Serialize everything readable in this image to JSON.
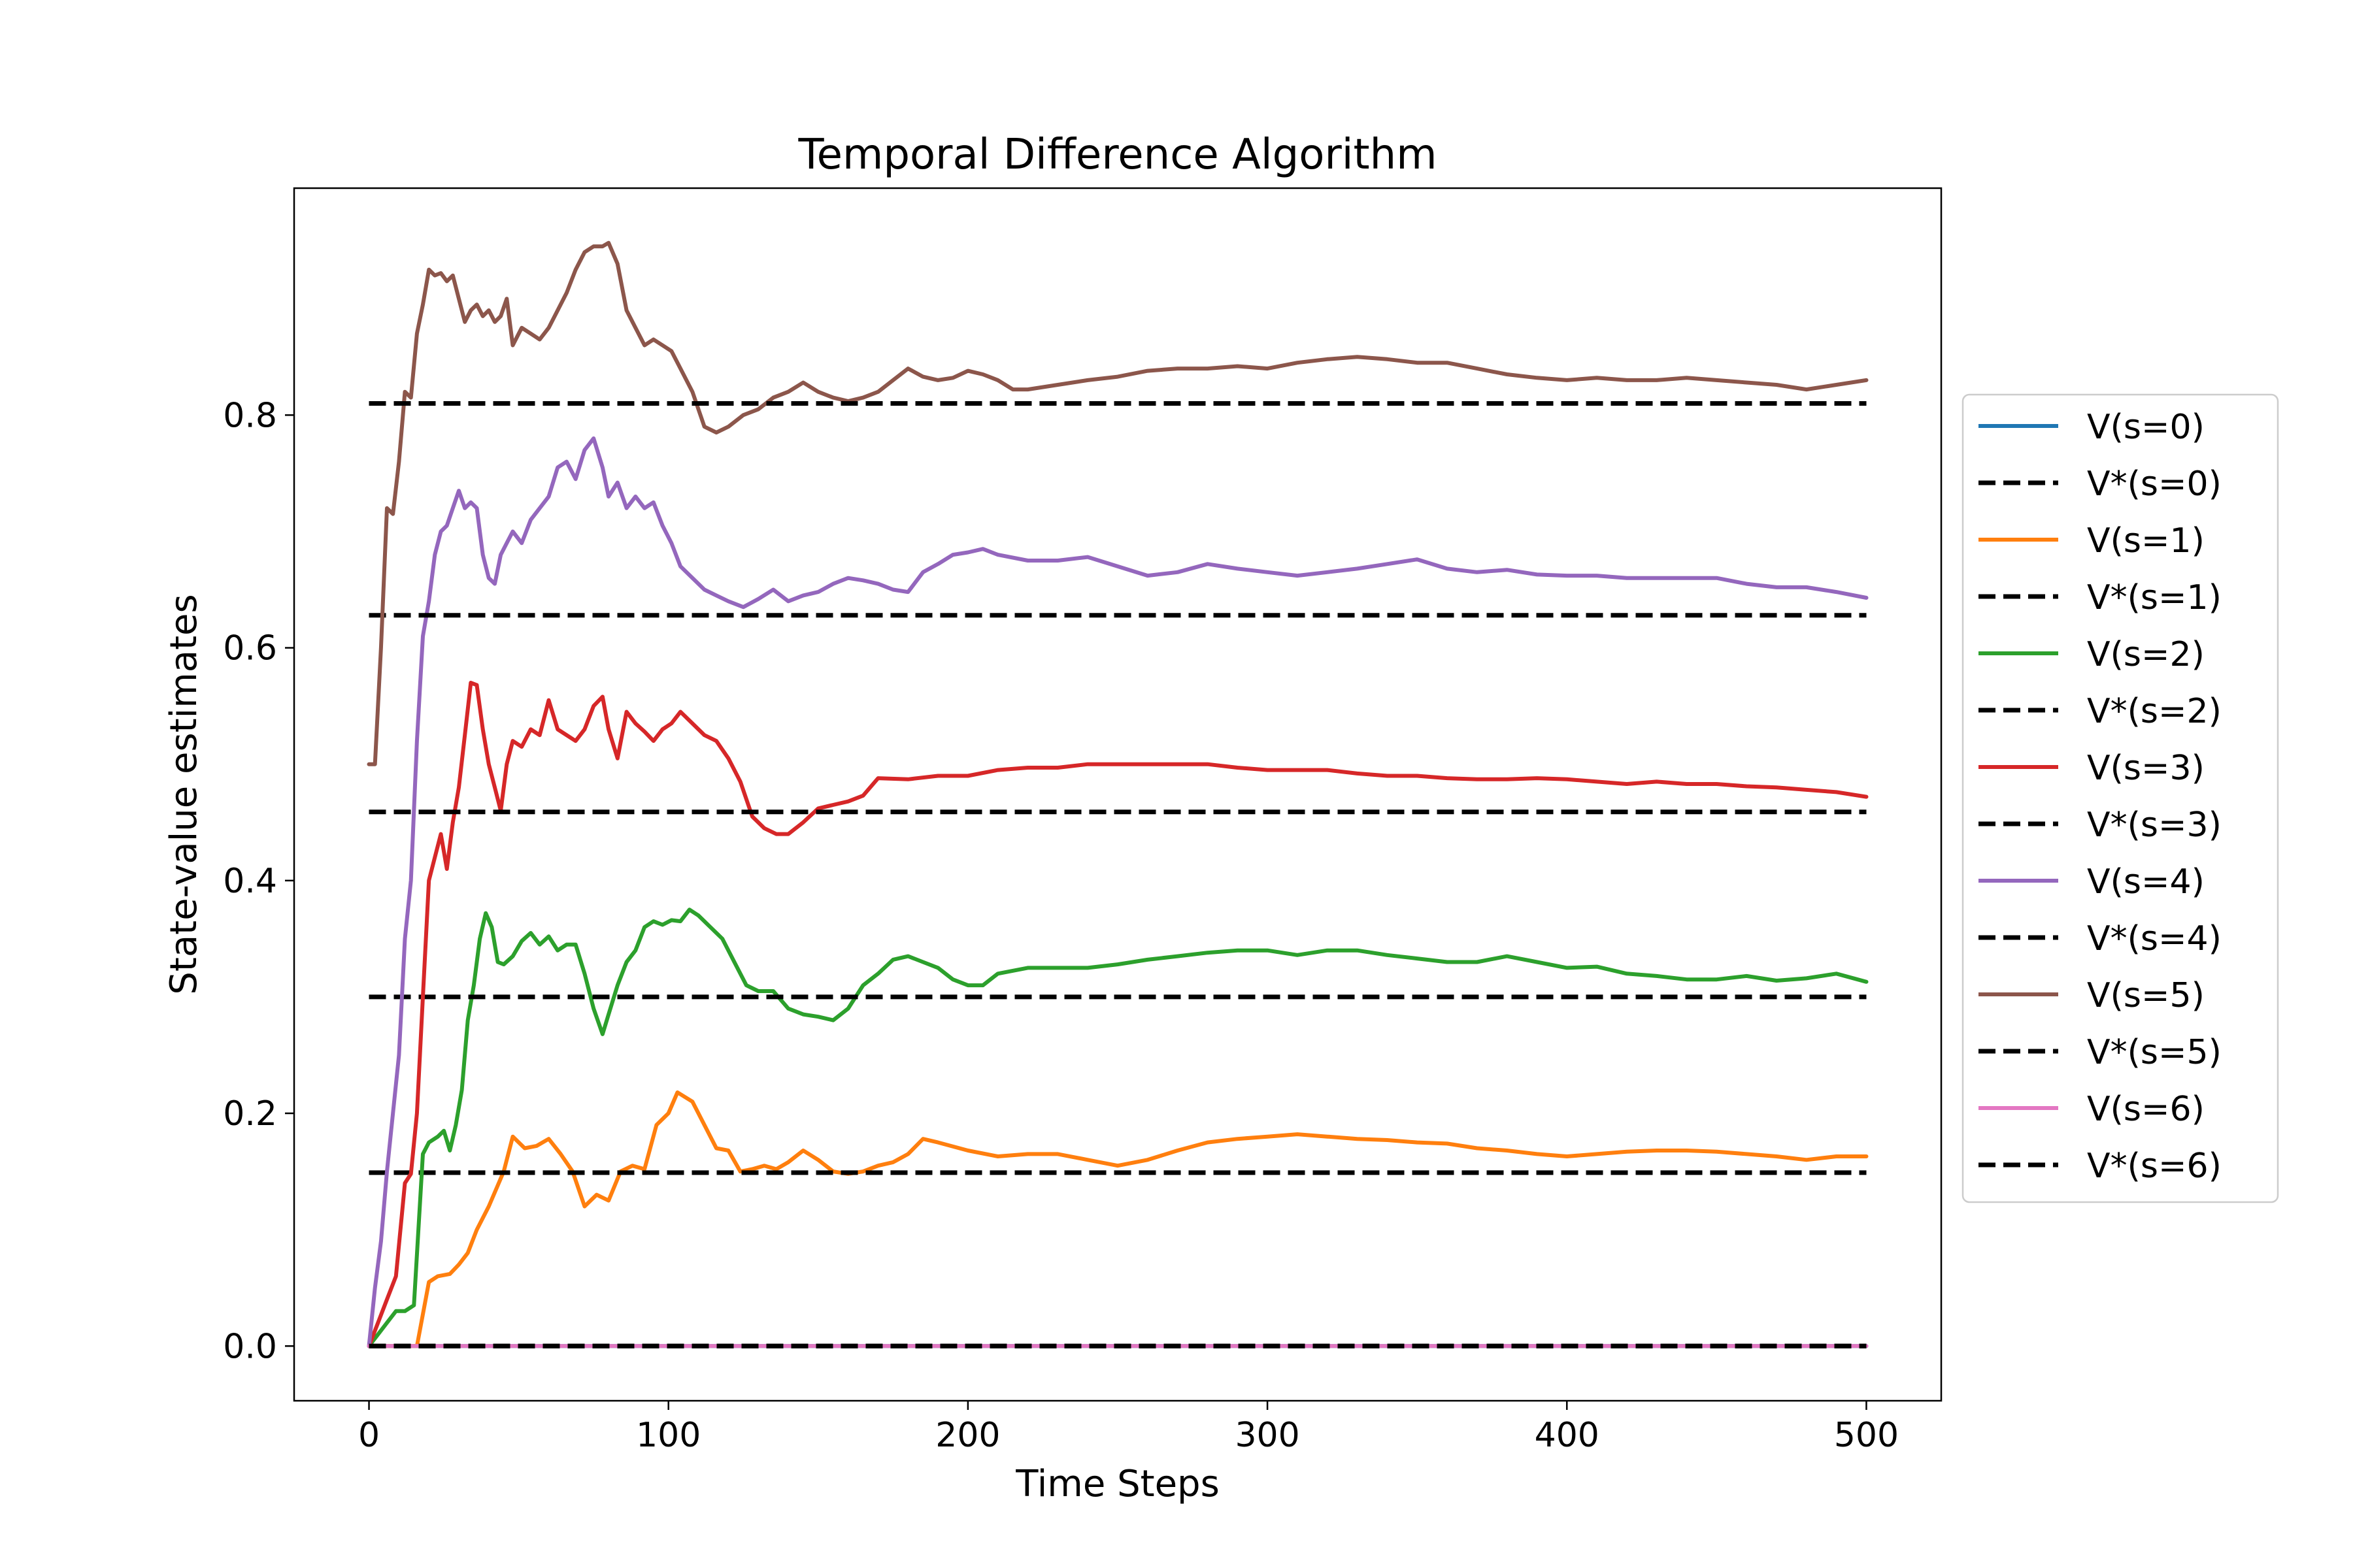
{
  "chart_data": {
    "type": "line",
    "title": "Temporal Difference Algorithm",
    "xlabel": "Time Steps",
    "ylabel": "State-value estimates",
    "xlim": [
      -25,
      525
    ],
    "ylim": [
      -0.047,
      0.995
    ],
    "xticks": [
      0,
      100,
      200,
      300,
      400,
      500
    ],
    "xtick_labels": [
      "0",
      "100",
      "200",
      "300",
      "400",
      "500"
    ],
    "yticks": [
      0.0,
      0.2,
      0.4,
      0.6,
      0.8
    ],
    "ytick_labels": [
      "0.0",
      "0.2",
      "0.4",
      "0.6",
      "0.8"
    ],
    "grid": false,
    "legend_position": "outside-right",
    "series": [
      {
        "name": "V(s=0)",
        "color": "#1f77b4",
        "style": "solid",
        "x": [
          0,
          500
        ],
        "y": [
          0.0,
          0.0
        ]
      },
      {
        "name": "V*(s=0)",
        "color": "#000000",
        "style": "dashed",
        "x": [
          0,
          500
        ],
        "y": [
          0.0,
          0.0
        ]
      },
      {
        "name": "V(s=1)",
        "color": "#ff7f0e",
        "style": "solid",
        "x": [
          0,
          16,
          20,
          23,
          27,
          30,
          33,
          36,
          40,
          45,
          48,
          52,
          56,
          60,
          64,
          68,
          72,
          76,
          80,
          84,
          88,
          92,
          96,
          100,
          103,
          108,
          112,
          116,
          120,
          124,
          128,
          132,
          136,
          140,
          145,
          150,
          155,
          160,
          165,
          170,
          175,
          180,
          185,
          190,
          200,
          210,
          220,
          230,
          240,
          250,
          260,
          270,
          280,
          290,
          300,
          310,
          320,
          330,
          340,
          350,
          360,
          370,
          380,
          390,
          400,
          410,
          420,
          430,
          440,
          450,
          460,
          470,
          480,
          490,
          500
        ],
        "y": [
          0.0,
          0.0,
          0.055,
          0.06,
          0.062,
          0.07,
          0.08,
          0.1,
          0.12,
          0.15,
          0.18,
          0.17,
          0.172,
          0.178,
          0.165,
          0.15,
          0.12,
          0.13,
          0.125,
          0.15,
          0.155,
          0.152,
          0.19,
          0.2,
          0.218,
          0.21,
          0.19,
          0.17,
          0.168,
          0.15,
          0.152,
          0.155,
          0.152,
          0.158,
          0.168,
          0.16,
          0.15,
          0.148,
          0.15,
          0.155,
          0.158,
          0.165,
          0.178,
          0.175,
          0.168,
          0.163,
          0.165,
          0.165,
          0.16,
          0.155,
          0.16,
          0.168,
          0.175,
          0.178,
          0.18,
          0.182,
          0.18,
          0.178,
          0.177,
          0.175,
          0.174,
          0.17,
          0.168,
          0.165,
          0.163,
          0.165,
          0.167,
          0.168,
          0.168,
          0.167,
          0.165,
          0.163,
          0.16,
          0.163,
          0.163
        ]
      },
      {
        "name": "V*(s=1)",
        "color": "#000000",
        "style": "dashed",
        "x": [
          0,
          500
        ],
        "y": [
          0.149,
          0.149
        ]
      },
      {
        "name": "V(s=2)",
        "color": "#2ca02c",
        "style": "solid",
        "x": [
          0,
          3,
          6,
          9,
          12,
          15,
          18,
          20,
          23,
          25,
          27,
          29,
          31,
          33,
          35,
          37,
          39,
          41,
          43,
          45,
          48,
          51,
          54,
          57,
          60,
          63,
          66,
          69,
          72,
          75,
          78,
          80,
          83,
          86,
          89,
          92,
          95,
          98,
          101,
          104,
          107,
          110,
          114,
          118,
          122,
          126,
          130,
          135,
          140,
          145,
          150,
          155,
          160,
          165,
          170,
          175,
          180,
          185,
          190,
          195,
          200,
          205,
          210,
          220,
          230,
          240,
          250,
          260,
          270,
          280,
          290,
          300,
          310,
          320,
          330,
          340,
          350,
          360,
          370,
          380,
          390,
          400,
          410,
          420,
          430,
          440,
          450,
          460,
          470,
          480,
          490,
          500
        ],
        "y": [
          0.0,
          0.01,
          0.02,
          0.03,
          0.03,
          0.035,
          0.165,
          0.175,
          0.18,
          0.185,
          0.168,
          0.19,
          0.22,
          0.28,
          0.31,
          0.35,
          0.372,
          0.36,
          0.33,
          0.328,
          0.335,
          0.348,
          0.355,
          0.345,
          0.352,
          0.34,
          0.345,
          0.345,
          0.32,
          0.29,
          0.268,
          0.285,
          0.31,
          0.33,
          0.34,
          0.36,
          0.365,
          0.362,
          0.366,
          0.365,
          0.375,
          0.37,
          0.36,
          0.35,
          0.33,
          0.31,
          0.305,
          0.305,
          0.29,
          0.285,
          0.283,
          0.28,
          0.29,
          0.31,
          0.32,
          0.332,
          0.335,
          0.33,
          0.325,
          0.315,
          0.31,
          0.31,
          0.32,
          0.325,
          0.325,
          0.325,
          0.328,
          0.332,
          0.335,
          0.338,
          0.34,
          0.34,
          0.336,
          0.34,
          0.34,
          0.336,
          0.333,
          0.33,
          0.33,
          0.335,
          0.33,
          0.325,
          0.326,
          0.32,
          0.318,
          0.315,
          0.315,
          0.318,
          0.314,
          0.316,
          0.32,
          0.313
        ]
      },
      {
        "name": "V*(s=2)",
        "color": "#000000",
        "style": "dashed",
        "x": [
          0,
          500
        ],
        "y": [
          0.3,
          0.3
        ]
      },
      {
        "name": "V(s=3)",
        "color": "#d62728",
        "style": "solid",
        "x": [
          0,
          3,
          6,
          9,
          12,
          14,
          16,
          18,
          20,
          22,
          24,
          26,
          28,
          30,
          32,
          34,
          36,
          38,
          40,
          42,
          44,
          46,
          48,
          51,
          54,
          57,
          60,
          63,
          66,
          69,
          72,
          75,
          78,
          80,
          83,
          86,
          89,
          92,
          95,
          98,
          101,
          104,
          108,
          112,
          116,
          120,
          124,
          128,
          132,
          136,
          140,
          145,
          150,
          155,
          160,
          165,
          170,
          180,
          190,
          200,
          210,
          220,
          230,
          240,
          250,
          260,
          270,
          280,
          290,
          300,
          310,
          320,
          330,
          340,
          350,
          360,
          370,
          380,
          390,
          400,
          410,
          420,
          430,
          440,
          450,
          460,
          470,
          480,
          490,
          500
        ],
        "y": [
          0.0,
          0.02,
          0.04,
          0.06,
          0.14,
          0.148,
          0.2,
          0.3,
          0.4,
          0.42,
          0.44,
          0.41,
          0.45,
          0.48,
          0.525,
          0.57,
          0.568,
          0.53,
          0.5,
          0.48,
          0.46,
          0.5,
          0.52,
          0.515,
          0.53,
          0.525,
          0.555,
          0.53,
          0.525,
          0.52,
          0.53,
          0.55,
          0.558,
          0.53,
          0.505,
          0.545,
          0.535,
          0.528,
          0.52,
          0.53,
          0.535,
          0.545,
          0.535,
          0.525,
          0.52,
          0.505,
          0.485,
          0.455,
          0.445,
          0.44,
          0.44,
          0.45,
          0.462,
          0.465,
          0.468,
          0.473,
          0.488,
          0.487,
          0.49,
          0.49,
          0.495,
          0.497,
          0.497,
          0.5,
          0.5,
          0.5,
          0.5,
          0.5,
          0.497,
          0.495,
          0.495,
          0.495,
          0.492,
          0.49,
          0.49,
          0.488,
          0.487,
          0.487,
          0.488,
          0.487,
          0.485,
          0.483,
          0.485,
          0.483,
          0.483,
          0.481,
          0.48,
          0.478,
          0.476,
          0.472
        ]
      },
      {
        "name": "V*(s=3)",
        "color": "#000000",
        "style": "dashed",
        "x": [
          0,
          500
        ],
        "y": [
          0.459,
          0.459
        ]
      },
      {
        "name": "V(s=4)",
        "color": "#9467bd",
        "style": "solid",
        "x": [
          0,
          2,
          4,
          6,
          8,
          10,
          12,
          14,
          16,
          18,
          20,
          22,
          24,
          26,
          28,
          30,
          32,
          34,
          36,
          38,
          40,
          42,
          44,
          46,
          48,
          51,
          54,
          57,
          60,
          63,
          66,
          69,
          72,
          75,
          78,
          80,
          83,
          86,
          89,
          92,
          95,
          98,
          101,
          104,
          108,
          112,
          116,
          120,
          125,
          130,
          135,
          140,
          145,
          150,
          155,
          160,
          165,
          170,
          175,
          180,
          185,
          190,
          195,
          200,
          205,
          210,
          220,
          230,
          240,
          250,
          260,
          270,
          280,
          290,
          300,
          310,
          320,
          330,
          340,
          350,
          360,
          370,
          380,
          390,
          400,
          410,
          420,
          430,
          440,
          450,
          460,
          470,
          480,
          490,
          500
        ],
        "y": [
          0.0,
          0.05,
          0.09,
          0.15,
          0.2,
          0.25,
          0.35,
          0.4,
          0.52,
          0.61,
          0.64,
          0.68,
          0.7,
          0.705,
          0.72,
          0.735,
          0.72,
          0.725,
          0.72,
          0.68,
          0.66,
          0.655,
          0.68,
          0.69,
          0.7,
          0.69,
          0.71,
          0.72,
          0.73,
          0.755,
          0.76,
          0.745,
          0.77,
          0.78,
          0.755,
          0.73,
          0.742,
          0.72,
          0.73,
          0.72,
          0.725,
          0.705,
          0.69,
          0.67,
          0.66,
          0.65,
          0.645,
          0.64,
          0.635,
          0.642,
          0.65,
          0.64,
          0.645,
          0.648,
          0.655,
          0.66,
          0.658,
          0.655,
          0.65,
          0.648,
          0.665,
          0.672,
          0.68,
          0.682,
          0.685,
          0.68,
          0.675,
          0.675,
          0.678,
          0.67,
          0.662,
          0.665,
          0.672,
          0.668,
          0.665,
          0.662,
          0.665,
          0.668,
          0.672,
          0.676,
          0.668,
          0.665,
          0.667,
          0.663,
          0.662,
          0.662,
          0.66,
          0.66,
          0.66,
          0.66,
          0.655,
          0.652,
          0.652,
          0.648,
          0.643
        ]
      },
      {
        "name": "V*(s=4)",
        "color": "#000000",
        "style": "dashed",
        "x": [
          0,
          500
        ],
        "y": [
          0.628,
          0.628
        ]
      },
      {
        "name": "V(s=5)",
        "color": "#8c564b",
        "style": "solid",
        "x": [
          0,
          2,
          4,
          6,
          8,
          10,
          12,
          14,
          16,
          18,
          20,
          22,
          24,
          26,
          28,
          30,
          32,
          34,
          36,
          38,
          40,
          42,
          44,
          46,
          48,
          51,
          54,
          57,
          60,
          63,
          66,
          69,
          72,
          75,
          78,
          80,
          83,
          86,
          89,
          92,
          95,
          98,
          101,
          104,
          108,
          112,
          116,
          120,
          125,
          130,
          135,
          140,
          145,
          150,
          155,
          160,
          165,
          170,
          175,
          180,
          185,
          190,
          195,
          200,
          205,
          210,
          215,
          220,
          230,
          240,
          250,
          260,
          270,
          280,
          290,
          300,
          310,
          320,
          330,
          340,
          350,
          360,
          370,
          380,
          390,
          400,
          410,
          420,
          430,
          440,
          450,
          460,
          470,
          480,
          490,
          500
        ],
        "y": [
          0.5,
          0.5,
          0.6,
          0.72,
          0.715,
          0.76,
          0.82,
          0.815,
          0.87,
          0.895,
          0.925,
          0.92,
          0.922,
          0.915,
          0.92,
          0.9,
          0.88,
          0.89,
          0.895,
          0.885,
          0.89,
          0.88,
          0.885,
          0.9,
          0.86,
          0.875,
          0.87,
          0.865,
          0.875,
          0.89,
          0.905,
          0.925,
          0.94,
          0.945,
          0.945,
          0.948,
          0.93,
          0.89,
          0.875,
          0.86,
          0.865,
          0.86,
          0.855,
          0.84,
          0.82,
          0.79,
          0.785,
          0.79,
          0.8,
          0.805,
          0.815,
          0.82,
          0.828,
          0.82,
          0.815,
          0.812,
          0.815,
          0.82,
          0.83,
          0.84,
          0.833,
          0.83,
          0.832,
          0.838,
          0.835,
          0.83,
          0.822,
          0.822,
          0.826,
          0.83,
          0.833,
          0.838,
          0.84,
          0.84,
          0.842,
          0.84,
          0.845,
          0.848,
          0.85,
          0.848,
          0.845,
          0.845,
          0.84,
          0.835,
          0.832,
          0.83,
          0.832,
          0.83,
          0.83,
          0.832,
          0.83,
          0.828,
          0.826,
          0.822,
          0.826,
          0.83
        ]
      },
      {
        "name": "V*(s=5)",
        "color": "#000000",
        "style": "dashed",
        "x": [
          0,
          500
        ],
        "y": [
          0.81,
          0.81
        ]
      },
      {
        "name": "V(s=6)",
        "color": "#e377c2",
        "style": "solid",
        "x": [
          0,
          500
        ],
        "y": [
          0.0,
          0.0
        ]
      },
      {
        "name": "V*(s=6)",
        "color": "#000000",
        "style": "dashed",
        "x": [
          0,
          500
        ],
        "y": [
          0.0,
          0.0
        ]
      }
    ]
  }
}
